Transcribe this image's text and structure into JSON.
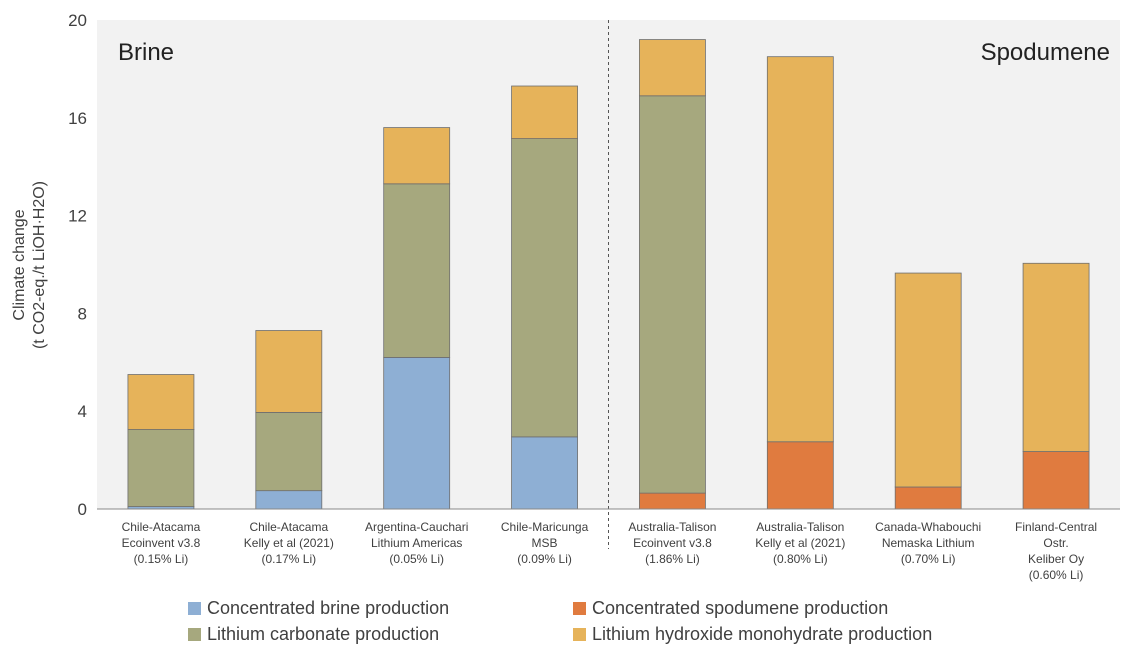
{
  "chart_data": {
    "type": "bar",
    "stacked": true,
    "ylabel_line1": "Climate change",
    "ylabel_line2": "(t CO2-eq./t LiOH·H2O)",
    "ylim": [
      0,
      20
    ],
    "yticks": [
      "0",
      "4",
      "8",
      "12",
      "16",
      "20"
    ],
    "ytick_values": [
      0,
      4,
      8,
      12,
      16,
      20
    ],
    "grid": false,
    "regions": [
      "Brine",
      "Spodumene"
    ],
    "categories": [
      [
        "Chile-Atacama",
        "Ecoinvent v3.8",
        "(0.15% Li)"
      ],
      [
        "Chile-Atacama",
        "Kelly et al (2021)",
        "(0.17% Li)"
      ],
      [
        "Argentina-Cauchari",
        "Lithium Americas",
        "(0.05% Li)"
      ],
      [
        "Chile-Maricunga",
        "MSB",
        "(0.09% Li)"
      ],
      [
        "Australia-Talison",
        "Ecoinvent v3.8",
        "(1.86% Li)"
      ],
      [
        "Australia-Talison",
        "Kelly et al (2021)",
        "(0.80% Li)"
      ],
      [
        "Canada-Whabouchi",
        "Nemaska Lithium",
        "(0.70% Li)"
      ],
      [
        "Finland-Central",
        "Ostr.",
        "Keliber Oy",
        "(0.60% Li)"
      ]
    ],
    "series": [
      {
        "name": "Concentrated brine production",
        "color": "#8eafd4",
        "values": [
          0.1,
          0.75,
          6.2,
          2.95,
          0,
          0,
          0,
          0
        ]
      },
      {
        "name": "Concentrated spodumene production",
        "color": "#e07b3f",
        "values": [
          0,
          0,
          0,
          0,
          0.65,
          2.75,
          0.9,
          2.35
        ]
      },
      {
        "name": "Lithium carbonate production",
        "color": "#a6a87e",
        "values": [
          3.15,
          3.2,
          7.1,
          12.2,
          16.25,
          0,
          0,
          0
        ]
      },
      {
        "name": "Lithium hydroxide monohydrate production",
        "color": "#e6b35a",
        "values": [
          2.25,
          3.35,
          2.3,
          2.15,
          2.3,
          15.75,
          8.75,
          7.7
        ]
      }
    ],
    "legend": {
      "placement": "bottom",
      "order": [
        "Concentrated brine production",
        "Concentrated spodumene production",
        "Lithium carbonate production",
        "Lithium hydroxide monohydrate production"
      ]
    },
    "divider_after_category": 4
  }
}
